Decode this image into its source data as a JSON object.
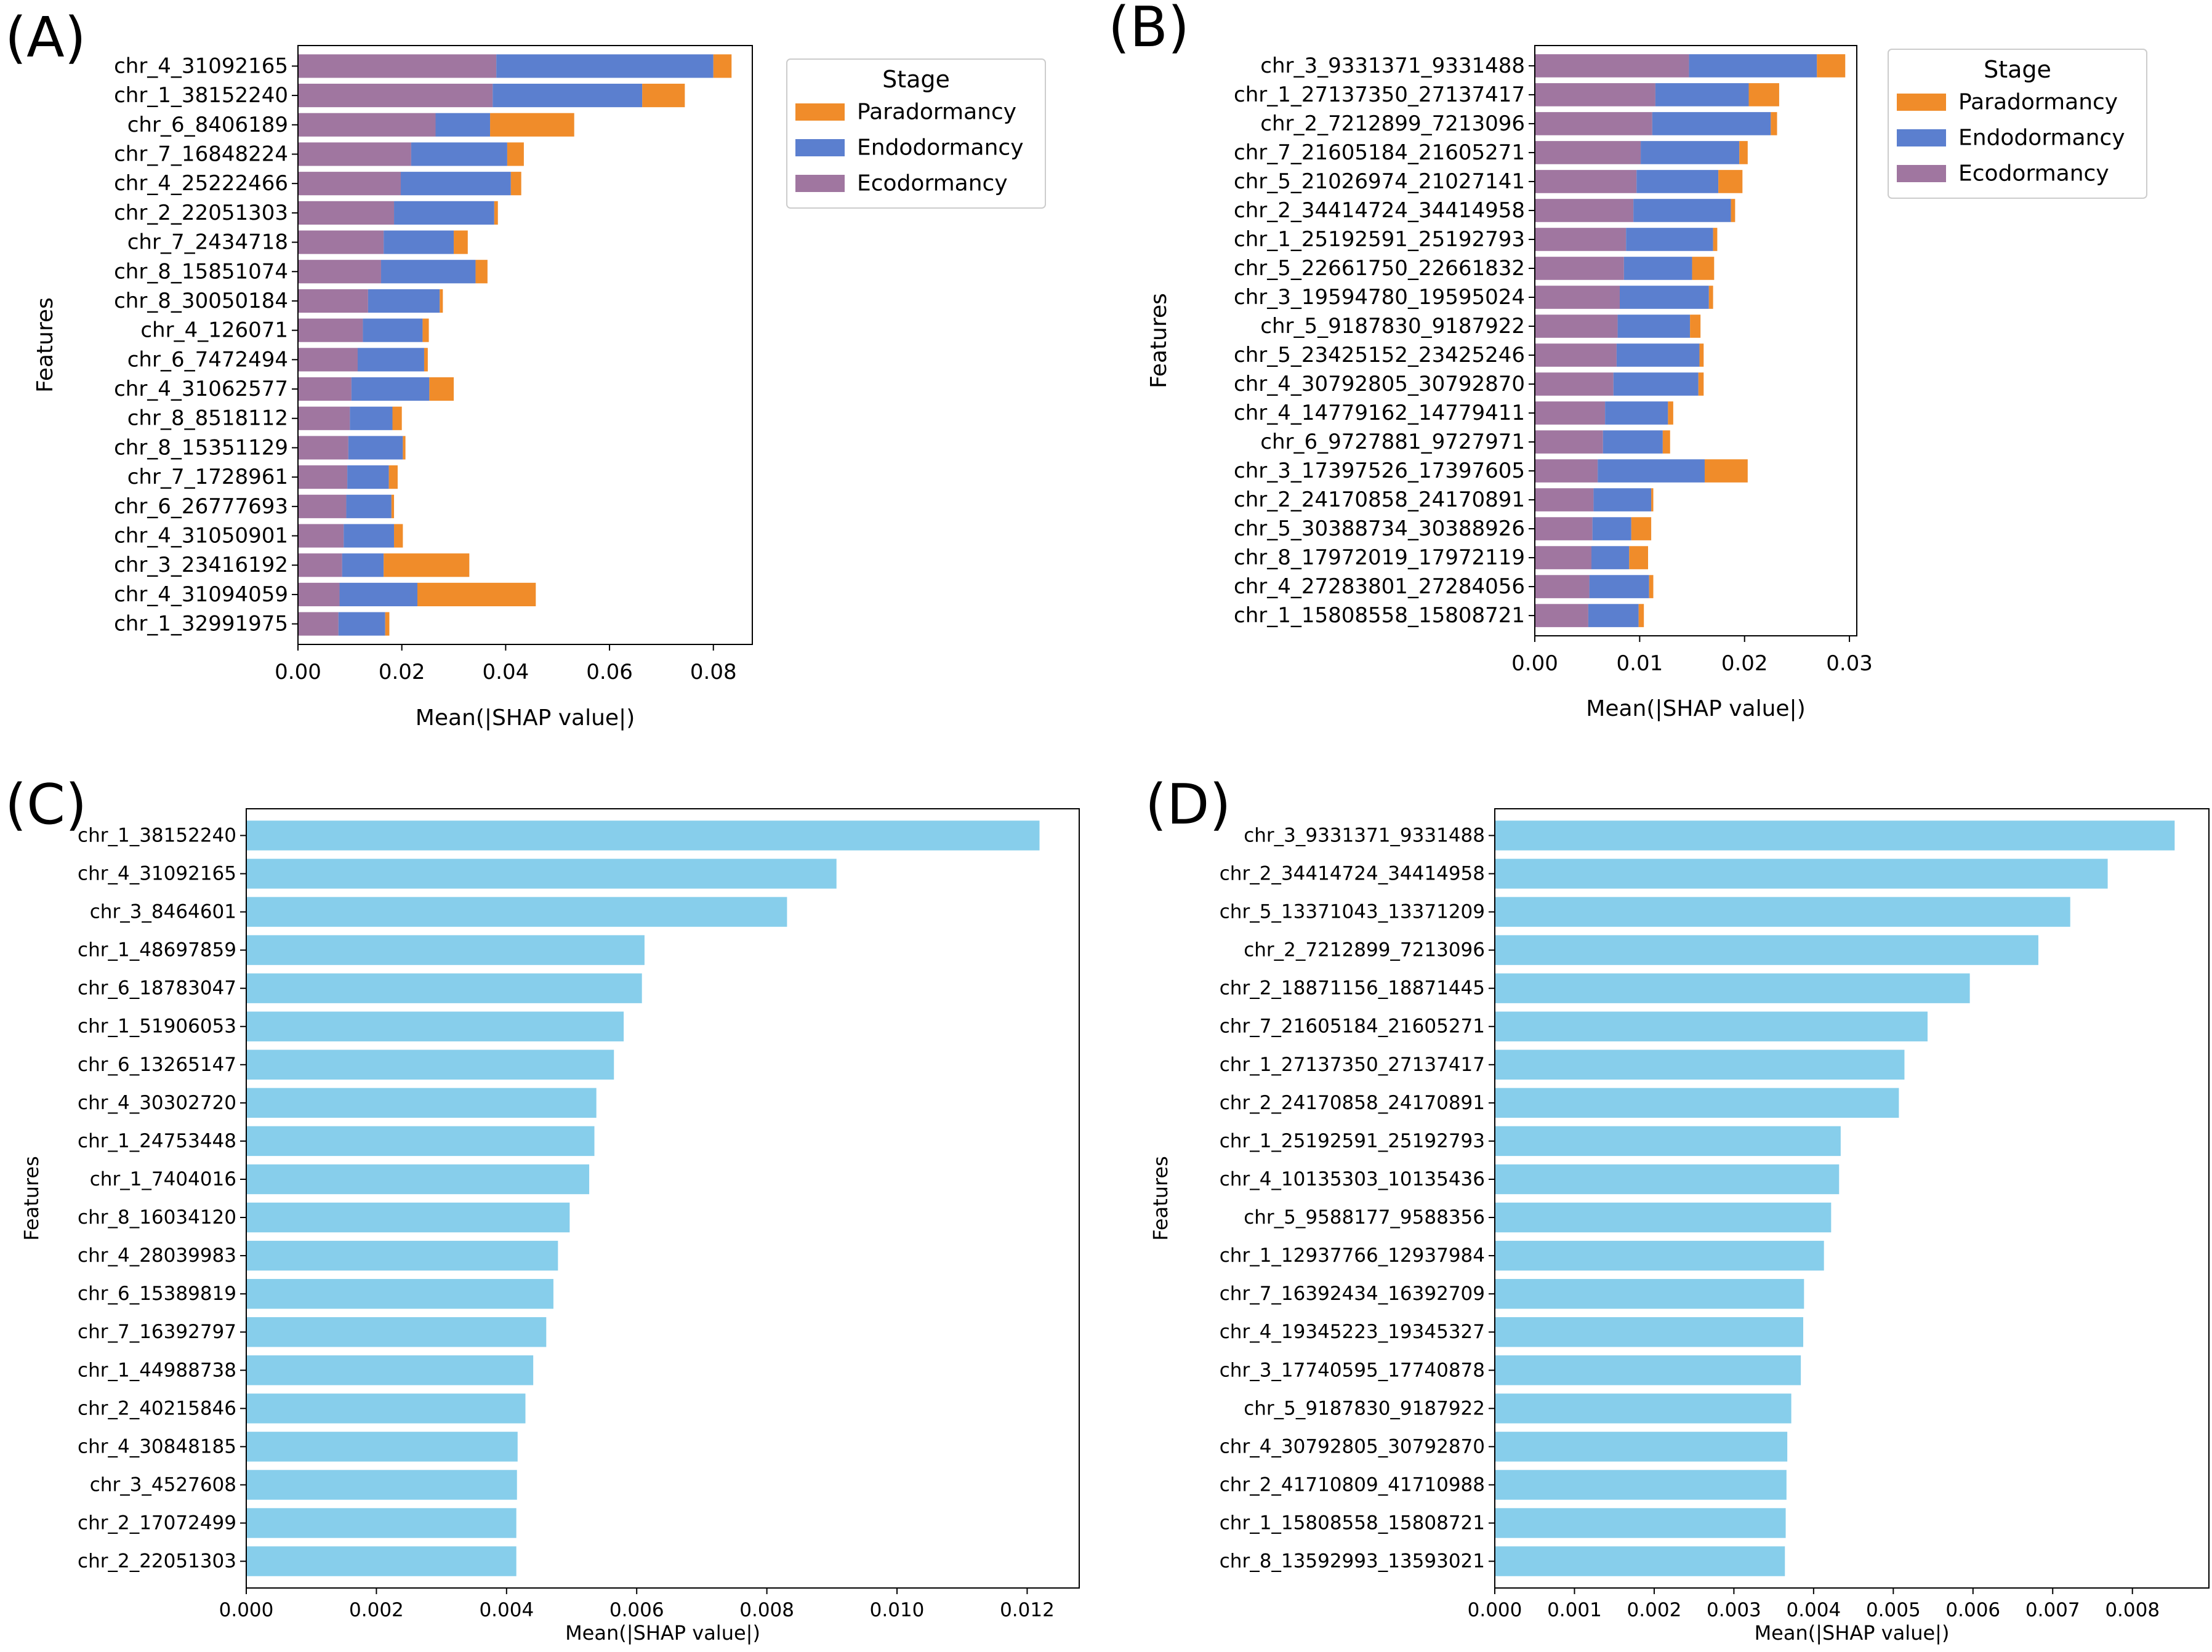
{
  "figure": {
    "colors": {
      "ecodormancy": "#a076a0",
      "endodormancy": "#5b7fcf",
      "paradormancy": "#f08c2a",
      "single": "#87ceeb",
      "axis": "#000000"
    }
  },
  "chart_data": [
    {
      "panel": "(A)",
      "type": "bar",
      "orientation": "horizontal",
      "stacked": true,
      "xlabel": "Mean(|SHAP value|)",
      "ylabel": "Features",
      "xlim": [
        0,
        0.0875
      ],
      "xticks": [
        "0.00",
        "0.02",
        "0.04",
        "0.06",
        "0.08"
      ],
      "xtick_values": [
        0,
        0.02,
        0.04,
        0.06,
        0.08
      ],
      "legend": {
        "title": "Stage",
        "entries": [
          "Paradormancy",
          "Endodormancy",
          "Ecodormancy"
        ],
        "placement": "upper right"
      },
      "categories": [
        "chr_4_31092165",
        "chr_1_38152240",
        "chr_6_8406189",
        "chr_7_16848224",
        "chr_4_25222466",
        "chr_2_22051303",
        "chr_7_2434718",
        "chr_8_15851074",
        "chr_8_30050184",
        "chr_4_126071",
        "chr_6_7472494",
        "chr_4_31062577",
        "chr_8_8518112",
        "chr_8_15351129",
        "chr_7_1728961",
        "chr_6_26777693",
        "chr_4_31050901",
        "chr_3_23416192",
        "chr_4_31094059",
        "chr_1_32991975"
      ],
      "series": [
        {
          "name": "Ecodormancy",
          "key": "ecodormancy",
          "values": [
            0.0382,
            0.0375,
            0.0265,
            0.0218,
            0.0198,
            0.0185,
            0.0165,
            0.016,
            0.0135,
            0.0125,
            0.0115,
            0.0103,
            0.01,
            0.0097,
            0.0095,
            0.0093,
            0.0088,
            0.0085,
            0.008,
            0.0078
          ]
        },
        {
          "name": "Endodormancy",
          "key": "endodormancy",
          "values": [
            0.0418,
            0.0288,
            0.0105,
            0.0185,
            0.0212,
            0.0193,
            0.0135,
            0.0182,
            0.0138,
            0.0115,
            0.0128,
            0.015,
            0.0082,
            0.0105,
            0.008,
            0.0087,
            0.0097,
            0.008,
            0.015,
            0.009
          ]
        },
        {
          "name": "Paradormancy",
          "key": "paradormancy",
          "values": [
            0.0035,
            0.0082,
            0.0162,
            0.0032,
            0.002,
            0.0007,
            0.0027,
            0.0023,
            0.0006,
            0.0012,
            0.0007,
            0.0047,
            0.0018,
            0.0005,
            0.0017,
            0.0005,
            0.0017,
            0.0165,
            0.0228,
            0.0008
          ]
        }
      ]
    },
    {
      "panel": "(B)",
      "type": "bar",
      "orientation": "horizontal",
      "stacked": true,
      "xlabel": "Mean(|SHAP value|)",
      "ylabel": "Features",
      "xlim": [
        0,
        0.0307
      ],
      "xticks": [
        "0.00",
        "0.01",
        "0.02",
        "0.03"
      ],
      "xtick_values": [
        0,
        0.01,
        0.02,
        0.03
      ],
      "legend": {
        "title": "Stage",
        "entries": [
          "Paradormancy",
          "Endodormancy",
          "Ecodormancy"
        ],
        "placement": "upper right"
      },
      "categories": [
        "chr_3_9331371_9331488",
        "chr_1_27137350_27137417",
        "chr_2_7212899_7213096",
        "chr_7_21605184_21605271",
        "chr_5_21026974_21027141",
        "chr_2_34414724_34414958",
        "chr_1_25192591_25192793",
        "chr_5_22661750_22661832",
        "chr_3_19594780_19595024",
        "chr_5_9187830_9187922",
        "chr_5_23425152_23425246",
        "chr_4_30792805_30792870",
        "chr_4_14779162_14779411",
        "chr_6_9727881_9727971",
        "chr_3_17397526_17397605",
        "chr_2_24170858_24170891",
        "chr_5_30388734_30388926",
        "chr_8_17972019_17972119",
        "chr_4_27283801_27284056",
        "chr_1_15808558_15808721"
      ],
      "series": [
        {
          "name": "Ecodormancy",
          "key": "ecodormancy",
          "values": [
            0.0147,
            0.0115,
            0.0112,
            0.0101,
            0.0097,
            0.0094,
            0.0087,
            0.0085,
            0.0081,
            0.0079,
            0.0078,
            0.0075,
            0.0067,
            0.0065,
            0.006,
            0.0056,
            0.0055,
            0.0054,
            0.0052,
            0.0051
          ]
        },
        {
          "name": "Endodormancy",
          "key": "endodormancy",
          "values": [
            0.0122,
            0.0089,
            0.0113,
            0.0094,
            0.0078,
            0.0093,
            0.0083,
            0.0065,
            0.0085,
            0.0069,
            0.0079,
            0.0081,
            0.006,
            0.0057,
            0.0102,
            0.0055,
            0.0037,
            0.0036,
            0.0057,
            0.0048
          ]
        },
        {
          "name": "Paradormancy",
          "key": "paradormancy",
          "values": [
            0.0027,
            0.0029,
            0.0006,
            0.0008,
            0.0023,
            0.0004,
            0.0004,
            0.0021,
            0.0004,
            0.001,
            0.0004,
            0.0005,
            0.0005,
            0.0007,
            0.0041,
            0.0002,
            0.0019,
            0.0018,
            0.0004,
            0.0005
          ]
        }
      ]
    },
    {
      "panel": "(C)",
      "type": "bar",
      "orientation": "horizontal",
      "stacked": false,
      "xlabel": "Mean(|SHAP value|)",
      "ylabel": "Features",
      "xlim": [
        0,
        0.0128
      ],
      "xticks": [
        "0.000",
        "0.002",
        "0.004",
        "0.006",
        "0.008",
        "0.010",
        "0.012"
      ],
      "xtick_values": [
        0,
        0.002,
        0.004,
        0.006,
        0.008,
        0.01,
        0.012
      ],
      "categories": [
        "chr_1_38152240",
        "chr_4_31092165",
        "chr_3_8464601",
        "chr_1_48697859",
        "chr_6_18783047",
        "chr_1_51906053",
        "chr_6_13265147",
        "chr_4_30302720",
        "chr_1_24753448",
        "chr_1_7404016",
        "chr_8_16034120",
        "chr_4_28039983",
        "chr_6_15389819",
        "chr_7_16392797",
        "chr_1_44988738",
        "chr_2_40215846",
        "chr_4_30848185",
        "chr_3_4527608",
        "chr_2_17072499",
        "chr_2_22051303"
      ],
      "values": [
        0.01219,
        0.00907,
        0.00831,
        0.00612,
        0.00608,
        0.0058,
        0.00565,
        0.00538,
        0.00535,
        0.00527,
        0.00497,
        0.00479,
        0.00472,
        0.00461,
        0.00441,
        0.00429,
        0.00417,
        0.00416,
        0.00415,
        0.00415
      ]
    },
    {
      "panel": "(D)",
      "type": "bar",
      "orientation": "horizontal",
      "stacked": false,
      "xlabel": "Mean(|SHAP value|)",
      "ylabel": "Features",
      "xlim": [
        0,
        0.00896
      ],
      "xticks": [
        "0.000",
        "0.001",
        "0.002",
        "0.003",
        "0.004",
        "0.005",
        "0.006",
        "0.007",
        "0.008"
      ],
      "xtick_values": [
        0,
        0.001,
        0.002,
        0.003,
        0.004,
        0.005,
        0.006,
        0.007,
        0.008
      ],
      "categories": [
        "chr_3_9331371_9331488",
        "chr_2_34414724_34414958",
        "chr_5_13371043_13371209",
        "chr_2_7212899_7213096",
        "chr_2_18871156_18871445",
        "chr_7_21605184_21605271",
        "chr_1_27137350_27137417",
        "chr_2_24170858_24170891",
        "chr_1_25192591_25192793",
        "chr_4_10135303_10135436",
        "chr_5_9588177_9588356",
        "chr_1_12937766_12937984",
        "chr_7_16392434_16392709",
        "chr_4_19345223_19345327",
        "chr_3_17740595_17740878",
        "chr_5_9187830_9187922",
        "chr_4_30792805_30792870",
        "chr_2_41710809_41710988",
        "chr_1_15808558_15808721",
        "chr_8_13592993_13593021"
      ],
      "values": [
        0.00853,
        0.00769,
        0.00722,
        0.00682,
        0.00596,
        0.00543,
        0.00514,
        0.00507,
        0.00434,
        0.00432,
        0.00422,
        0.00413,
        0.00388,
        0.00387,
        0.00384,
        0.00372,
        0.00367,
        0.00366,
        0.00365,
        0.00364
      ]
    }
  ]
}
